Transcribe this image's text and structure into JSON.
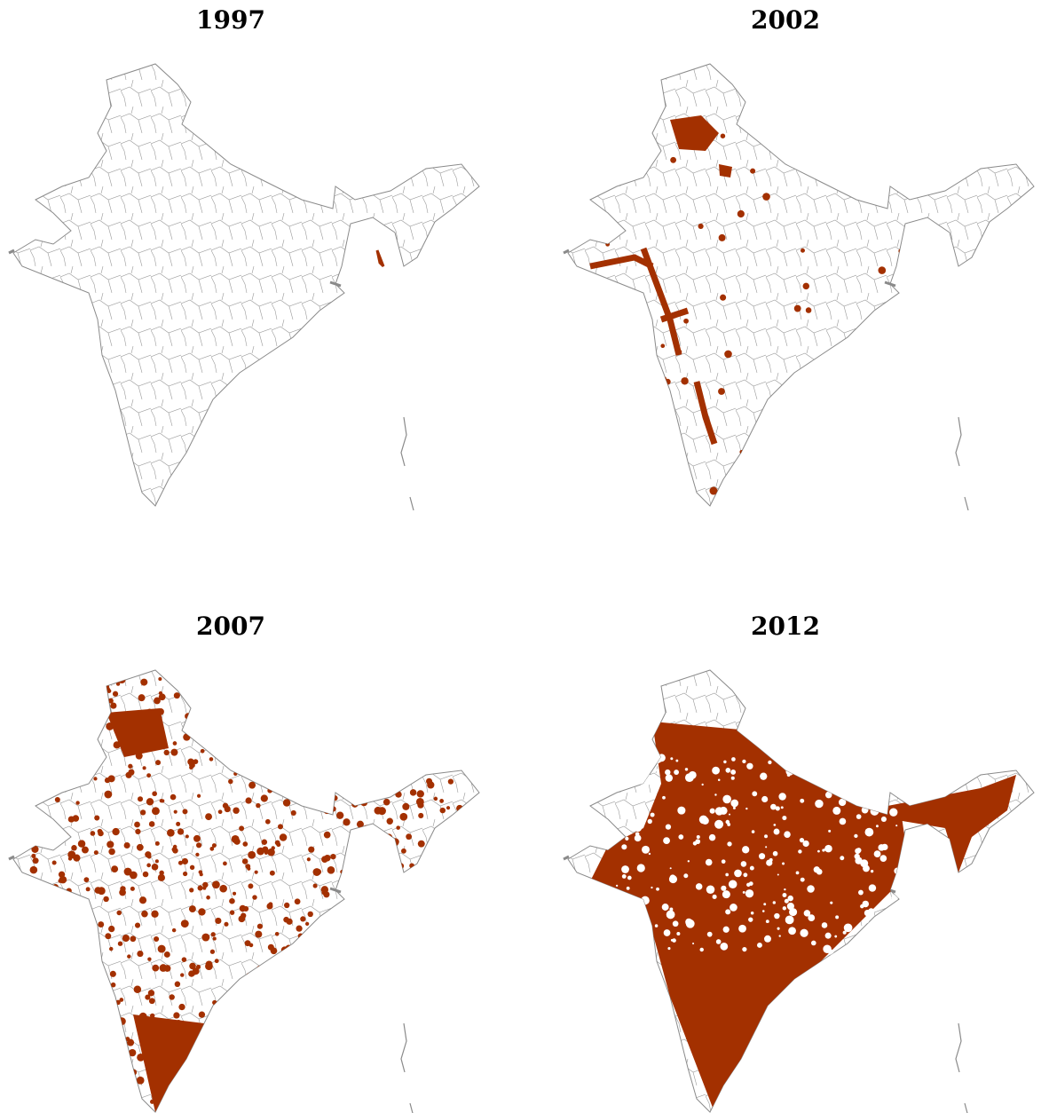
{
  "panels": [
    {
      "title": "1997"
    },
    {
      "title": "2002"
    },
    {
      "title": "2007"
    },
    {
      "title": "2012"
    }
  ]
}
